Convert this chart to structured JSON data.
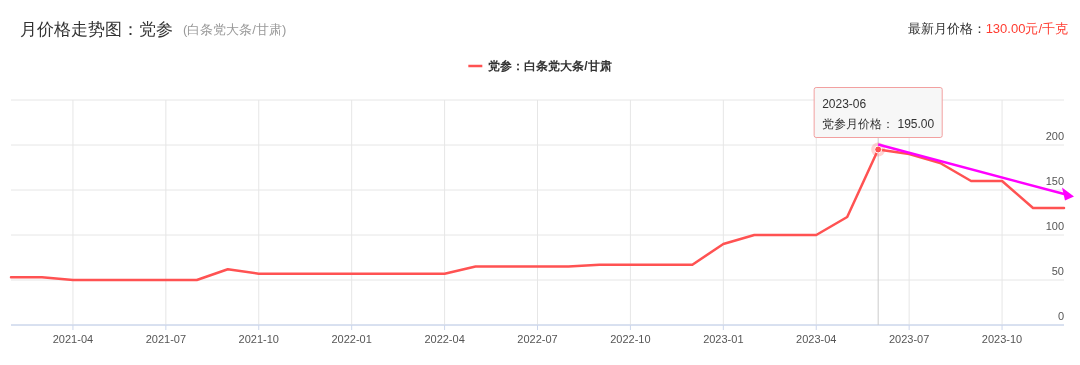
{
  "chart_data": {
    "type": "line",
    "title": "月价格走势图：党参",
    "subtitle": "(白条党大条/甘肃)",
    "annotations": [
      "最新月价格：",
      "130.00元/千克",
      {
        "text": "2023-06\n党参月价格：  195.00",
        "x": "2023-06",
        "y": 195
      }
    ],
    "x": [
      "2021-02",
      "2021-03",
      "2021-04",
      "2021-05",
      "2021-06",
      "2021-07",
      "2021-08",
      "2021-09",
      "2021-10",
      "2021-11",
      "2021-12",
      "2022-01",
      "2022-02",
      "2022-03",
      "2022-04",
      "2022-05",
      "2022-06",
      "2022-07",
      "2022-08",
      "2022-09",
      "2022-10",
      "2022-11",
      "2022-12",
      "2023-01",
      "2023-02",
      "2023-03",
      "2023-04",
      "2023-05",
      "2023-06",
      "2023-07",
      "2023-08",
      "2023-09",
      "2023-10",
      "2023-11",
      "2023-12"
    ],
    "series": [
      {
        "name": "党参：白条党大条/甘肃",
        "color": "#ff5252",
        "values": [
          53,
          53,
          50,
          50,
          50,
          50,
          50,
          62,
          57,
          57,
          57,
          57,
          57,
          57,
          57,
          65,
          65,
          65,
          65,
          67,
          67,
          67,
          67,
          90,
          100,
          100,
          100,
          120,
          195,
          190,
          180,
          160,
          160,
          130,
          130
        ]
      }
    ],
    "xlim": [
      "2021-02",
      "2023-12"
    ],
    "xticks": [
      "2021-04",
      "2021-07",
      "2021-10",
      "2022-01",
      "2022-04",
      "2022-07",
      "2022-10",
      "2023-01",
      "2023-04",
      "2023-07",
      "2023-10"
    ],
    "ylim": [
      0,
      250
    ],
    "yticks": [
      0,
      50,
      100,
      150,
      200,
      {
        "value": 250,
        "label": null
      }
    ],
    "ref_lines": [
      {
        "axis": "x",
        "value": "2023-06",
        "color": "#cccccc"
      }
    ],
    "grid": true,
    "legend": "top",
    "marker": "none",
    "line_style": "solid"
  }
}
